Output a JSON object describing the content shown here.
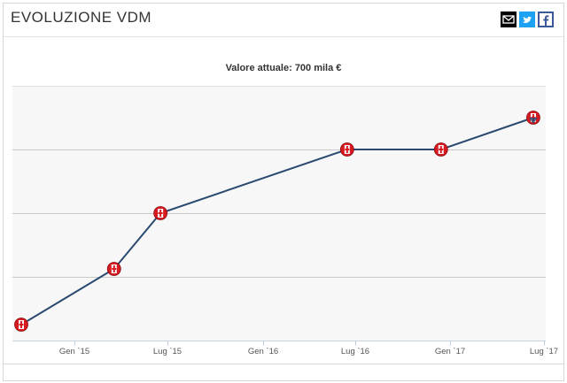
{
  "header": {
    "title": "EVOLUZIONE VDM",
    "share": [
      {
        "name": "email-icon",
        "bg": "#000000"
      },
      {
        "name": "twitter-icon",
        "bg": "#1da1f2"
      },
      {
        "name": "facebook-icon",
        "bg": "#3b5998"
      }
    ]
  },
  "chart_data": {
    "type": "line",
    "title": "Valore attuale: 700 mila €",
    "xlabel": "",
    "ylabel": "",
    "x_ticks": [
      "Gen `15",
      "Lug `15",
      "Gen `16",
      "Lug `16",
      "Gen `17",
      "Lug `17"
    ],
    "ylim": [
      0,
      800
    ],
    "grid": true,
    "line_color": "#2b4a6f",
    "marker_colors": [
      "#d71920",
      "#ffffff"
    ],
    "series": [
      {
        "x": [
          "2014-10",
          "2015-04",
          "2015-07",
          "2016-07",
          "2017-01",
          "2017-07"
        ],
        "values": [
          50,
          225,
          400,
          600,
          600,
          700
        ]
      }
    ]
  }
}
